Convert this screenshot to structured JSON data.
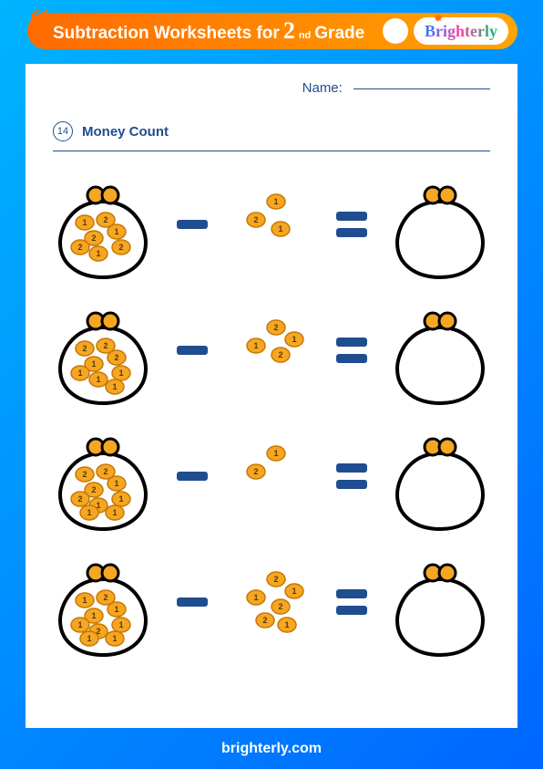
{
  "header": {
    "title_prefix": "Subtraction Worksheets for",
    "grade_number": "2",
    "grade_suffix": "nd",
    "title_suffix": "Grade",
    "brand": "Brighterly",
    "banner_color_left": "#ff6b00",
    "banner_color_right": "#ffa500"
  },
  "worksheet": {
    "name_label": "Name:",
    "section_number": "14",
    "section_title": "Money Count",
    "accent_color": "#1f4d8f",
    "coin_fill": "#f5a623",
    "coin_stroke": "#c77800",
    "purse_stroke": "#000000",
    "purse_clasp_fill": "#f5a623",
    "problems": [
      {
        "purse_coins": [
          "2",
          "1",
          "2",
          "1",
          "2",
          "1",
          "2"
        ],
        "loose_coins": [
          "1",
          "2",
          "1"
        ]
      },
      {
        "purse_coins": [
          "1",
          "2",
          "2",
          "2",
          "1",
          "1",
          "1",
          "1"
        ],
        "loose_coins": [
          "2",
          "1",
          "2",
          "1"
        ]
      },
      {
        "purse_coins": [
          "2",
          "1",
          "2",
          "2",
          "1",
          "1",
          "2",
          "1",
          "1"
        ],
        "loose_coins": [
          "1",
          "2"
        ]
      },
      {
        "purse_coins": [
          "1",
          "1",
          "2",
          "1",
          "1",
          "2",
          "1",
          "1",
          "1"
        ],
        "loose_coins": [
          "2",
          "1",
          "2",
          "1",
          "2",
          "1"
        ]
      }
    ]
  },
  "footer": {
    "url": "brighterly.com"
  },
  "background": {
    "gradient_from": "#00b4ff",
    "gradient_to": "#0066ff"
  }
}
